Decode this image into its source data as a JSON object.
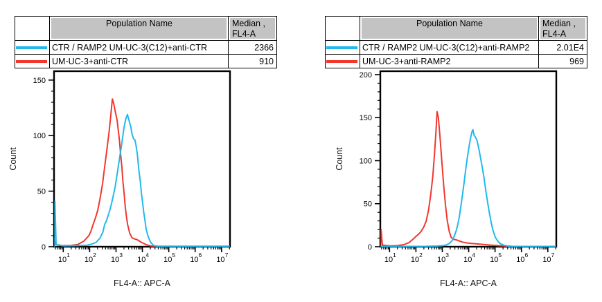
{
  "figure": {
    "background": "#ffffff",
    "accent_cyan": "#21b9ec",
    "accent_red": "#f1372e"
  },
  "panels": [
    {
      "table": {
        "header": {
          "population": "Population Name",
          "median_line1": "Median ,",
          "median_line2": "FL4-A"
        },
        "rows": [
          {
            "color": "#21b9ec",
            "name": "CTR / RAMP2 UM-UC-3(C12)+anti-CTR",
            "median": "2366"
          },
          {
            "color": "#f1372e",
            "name": "UM-UC-3+anti-CTR",
            "median": "910"
          }
        ]
      }
    },
    {
      "table": {
        "header": {
          "population": "Population Name",
          "median_line1": "Median ,",
          "median_line2": "FL4-A"
        },
        "rows": [
          {
            "color": "#21b9ec",
            "name": "CTR / RAMP2 UM-UC-3(C12)+anti-RAMP2",
            "median": "2.01E4"
          },
          {
            "color": "#f1372e",
            "name": "UM-UC-3+anti-RAMP2",
            "median": "969"
          }
        ]
      }
    }
  ],
  "chart_data": [
    {
      "type": "line",
      "subtype": "flow-cytometry-histogram",
      "xlabel": "FL4-A:: APC-A",
      "ylabel": "Count",
      "x_scale": "log10",
      "x_range_log": [
        0.65,
        7.32
      ],
      "x_ticks_log": [
        1,
        2,
        3,
        4,
        5,
        6,
        7
      ],
      "ylim": [
        0,
        158
      ],
      "y_ticks": [
        0,
        50,
        100,
        150
      ],
      "y_minor_step": 10,
      "grid": false,
      "legend": "none",
      "series": [
        {
          "name": "UM-UC-3+anti-CTR",
          "color": "#f1372e",
          "median_fl4a": "910",
          "points": [
            [
              0.66,
              0
            ],
            [
              0.68,
              5
            ],
            [
              0.72,
              2
            ],
            [
              0.95,
              1
            ],
            [
              1.3,
              1.2
            ],
            [
              1.55,
              2
            ],
            [
              1.78,
              5
            ],
            [
              1.97,
              10
            ],
            [
              2.05,
              14
            ],
            [
              2.13,
              20
            ],
            [
              2.22,
              26
            ],
            [
              2.31,
              33
            ],
            [
              2.4,
              44
            ],
            [
              2.49,
              57
            ],
            [
              2.57,
              72
            ],
            [
              2.65,
              87
            ],
            [
              2.74,
              104
            ],
            [
              2.8,
              118
            ],
            [
              2.86,
              133
            ],
            [
              2.91,
              129
            ],
            [
              2.97,
              122
            ],
            [
              3.04,
              114
            ],
            [
              3.13,
              96
            ],
            [
              3.17,
              84
            ],
            [
              3.22,
              72
            ],
            [
              3.26,
              59
            ],
            [
              3.31,
              47
            ],
            [
              3.35,
              36
            ],
            [
              3.39,
              28
            ],
            [
              3.44,
              20
            ],
            [
              3.52,
              12
            ],
            [
              3.61,
              8
            ],
            [
              3.7,
              7
            ],
            [
              3.79,
              6.5
            ],
            [
              3.96,
              4
            ],
            [
              4.13,
              2
            ],
            [
              4.32,
              0.7
            ],
            [
              4.6,
              0.4
            ],
            [
              5.5,
              0.4
            ],
            [
              6.5,
              0.4
            ],
            [
              7.3,
              0.4
            ]
          ]
        },
        {
          "name": "CTR / RAMP2 UM-UC-3(C12)+anti-CTR",
          "color": "#21b9ec",
          "median_fl4a": "2366",
          "points": [
            [
              0.66,
              0
            ],
            [
              0.685,
              41
            ],
            [
              0.73,
              2
            ],
            [
              1.0,
              0.8
            ],
            [
              1.5,
              1
            ],
            [
              1.9,
              1.3
            ],
            [
              2.1,
              2.5
            ],
            [
              2.25,
              4
            ],
            [
              2.4,
              8
            ],
            [
              2.5,
              13
            ],
            [
              2.57,
              20
            ],
            [
              2.63,
              23
            ],
            [
              2.7,
              28
            ],
            [
              2.78,
              34
            ],
            [
              2.87,
              43
            ],
            [
              2.96,
              53
            ],
            [
              3.04,
              65
            ],
            [
              3.13,
              79
            ],
            [
              3.22,
              93
            ],
            [
              3.3,
              107
            ],
            [
              3.37,
              115
            ],
            [
              3.43,
              119
            ],
            [
              3.49,
              114
            ],
            [
              3.56,
              108
            ],
            [
              3.61,
              101
            ],
            [
              3.67,
              97
            ],
            [
              3.72,
              96
            ],
            [
              3.76,
              91
            ],
            [
              3.81,
              83
            ],
            [
              3.87,
              68
            ],
            [
              3.92,
              59
            ],
            [
              3.96,
              49
            ],
            [
              4.0,
              41
            ],
            [
              4.05,
              31
            ],
            [
              4.1,
              23
            ],
            [
              4.14,
              16
            ],
            [
              4.22,
              9
            ],
            [
              4.31,
              4
            ],
            [
              4.42,
              1.2
            ],
            [
              4.56,
              0.5
            ],
            [
              5.2,
              0.4
            ],
            [
              6.2,
              0.4
            ],
            [
              7.3,
              0.4
            ]
          ]
        }
      ]
    },
    {
      "type": "line",
      "subtype": "flow-cytometry-histogram",
      "xlabel": "FL4-A:: APC-A",
      "ylabel": "Count",
      "x_scale": "log10",
      "x_range_log": [
        0.65,
        7.32
      ],
      "x_ticks_log": [
        1,
        2,
        3,
        4,
        5,
        6,
        7
      ],
      "ylim": [
        0,
        204
      ],
      "y_ticks": [
        0,
        50,
        100,
        150,
        200
      ],
      "y_minor_step": 10,
      "grid": false,
      "legend": "none",
      "series": [
        {
          "name": "UM-UC-3+anti-RAMP2",
          "color": "#f1372e",
          "median_fl4a": "969",
          "points": [
            [
              0.66,
              0
            ],
            [
              0.68,
              20
            ],
            [
              0.73,
              2
            ],
            [
              1.0,
              1
            ],
            [
              1.3,
              1.3
            ],
            [
              1.55,
              2.5
            ],
            [
              1.75,
              5
            ],
            [
              1.9,
              9
            ],
            [
              2.0,
              12
            ],
            [
              2.1,
              14.5
            ],
            [
              2.2,
              18
            ],
            [
              2.3,
              23
            ],
            [
              2.39,
              30
            ],
            [
              2.48,
              43
            ],
            [
              2.56,
              60
            ],
            [
              2.64,
              82
            ],
            [
              2.71,
              110
            ],
            [
              2.76,
              135
            ],
            [
              2.8,
              157
            ],
            [
              2.85,
              150
            ],
            [
              2.91,
              128
            ],
            [
              2.98,
              100
            ],
            [
              3.05,
              72
            ],
            [
              3.12,
              48
            ],
            [
              3.19,
              30
            ],
            [
              3.26,
              18
            ],
            [
              3.33,
              11
            ],
            [
              3.42,
              8.5
            ],
            [
              3.52,
              8
            ],
            [
              3.62,
              7
            ],
            [
              3.75,
              5.5
            ],
            [
              3.9,
              4.5
            ],
            [
              4.1,
              3.8
            ],
            [
              4.35,
              3.2
            ],
            [
              4.6,
              2.5
            ],
            [
              4.85,
              1.8
            ],
            [
              5.1,
              1.3
            ],
            [
              5.35,
              0.9
            ],
            [
              5.6,
              0.5
            ],
            [
              6.0,
              0.4
            ],
            [
              7.3,
              0.4
            ]
          ]
        },
        {
          "name": "CTR / RAMP2 UM-UC-3(C12)+anti-RAMP2",
          "color": "#21b9ec",
          "median_fl4a": "2.01E4",
          "points": [
            [
              0.66,
              0.4
            ],
            [
              1.5,
              0.4
            ],
            [
              2.4,
              0.5
            ],
            [
              2.8,
              0.8
            ],
            [
              3.0,
              1.2
            ],
            [
              3.15,
              2
            ],
            [
              3.27,
              4
            ],
            [
              3.37,
              7
            ],
            [
              3.45,
              12
            ],
            [
              3.52,
              18
            ],
            [
              3.58,
              25
            ],
            [
              3.64,
              34
            ],
            [
              3.7,
              46
            ],
            [
              3.76,
              59
            ],
            [
              3.82,
              73
            ],
            [
              3.88,
              88
            ],
            [
              3.94,
              102
            ],
            [
              4.0,
              114
            ],
            [
              4.06,
              125
            ],
            [
              4.12,
              133
            ],
            [
              4.16,
              136
            ],
            [
              4.2,
              130
            ],
            [
              4.26,
              127
            ],
            [
              4.31,
              124
            ],
            [
              4.37,
              116
            ],
            [
              4.44,
              105
            ],
            [
              4.51,
              93
            ],
            [
              4.58,
              80
            ],
            [
              4.65,
              65
            ],
            [
              4.72,
              51
            ],
            [
              4.79,
              38
            ],
            [
              4.86,
              27
            ],
            [
              4.93,
              18
            ],
            [
              5.01,
              11
            ],
            [
              5.1,
              6.5
            ],
            [
              5.2,
              3.5
            ],
            [
              5.33,
              1.8
            ],
            [
              5.48,
              0.8
            ],
            [
              5.65,
              0.5
            ],
            [
              6.1,
              0.4
            ],
            [
              7.3,
              0.4
            ]
          ]
        }
      ]
    }
  ]
}
